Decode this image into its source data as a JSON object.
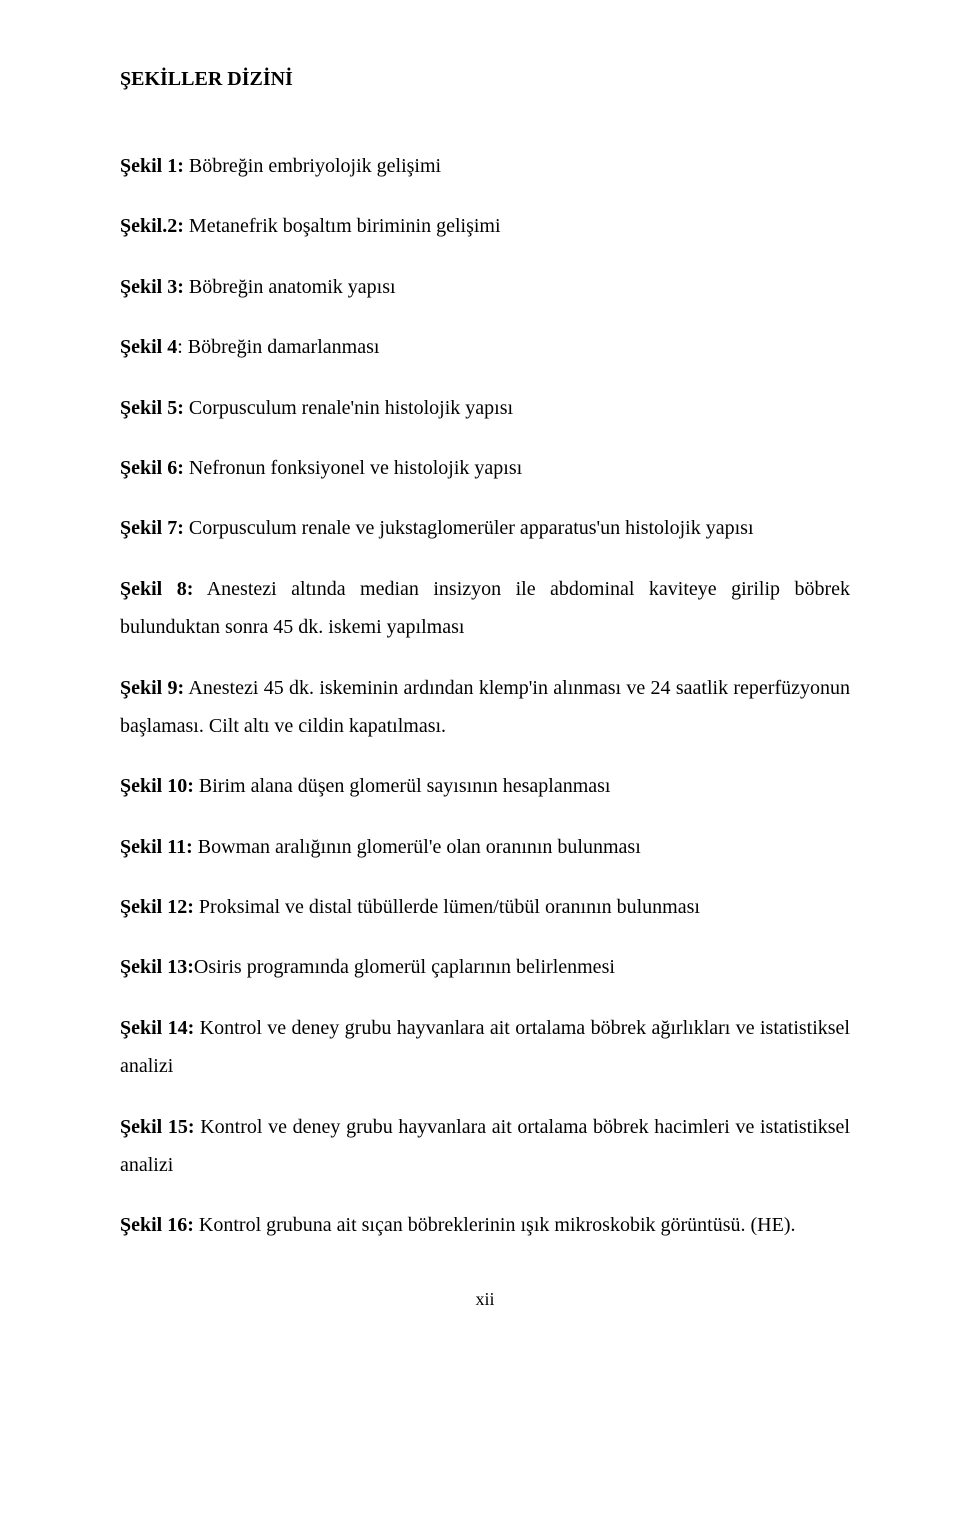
{
  "title": "ŞEKİLLER DİZİNİ",
  "entries": [
    {
      "label": "Şekil 1:",
      "text": " Böbreğin embriyolojik gelişimi"
    },
    {
      "label": "Şekil.2:",
      "text": " Metanefrik boşaltım biriminin gelişimi"
    },
    {
      "label": "Şekil 3:",
      "text": " Böbreğin anatomik yapısı"
    },
    {
      "label": "Şekil 4",
      "text": ": Böbreğin damarlanması"
    },
    {
      "label": "Şekil 5:",
      "text": " Corpusculum renale'nin histolojik yapısı"
    },
    {
      "label": "Şekil 6:",
      "text": " Nefronun fonksiyonel ve histolojik yapısı"
    },
    {
      "label": "Şekil 7:",
      "text": " Corpusculum renale ve jukstaglomerüler apparatus'un histolojik yapısı"
    },
    {
      "label": "Şekil 8:",
      "text": " Anestezi altında median insizyon ile abdominal kaviteye girilip böbrek bulunduktan sonra 45 dk. iskemi yapılması"
    },
    {
      "label": "Şekil 9:",
      "text": " Anestezi 45 dk. iskeminin ardından klemp'in alınması ve 24 saatlik reperfüzyonun başlaması. Cilt altı ve cildin kapatılması."
    },
    {
      "label": "Şekil 10:",
      "text": " Birim alana düşen glomerül sayısının hesaplanması"
    },
    {
      "label": "Şekil 11:",
      "text": " Bowman aralığının glomerül'e olan oranının bulunması"
    },
    {
      "label": "Şekil 12:",
      "text": " Proksimal ve distal tübüllerde lümen/tübül oranının bulunması"
    },
    {
      "label": "Şekil 13:",
      "text": "Osiris programında glomerül çaplarının belirlenmesi"
    },
    {
      "label": "Şekil 14:",
      "text": " Kontrol ve deney grubu hayvanlara ait ortalama böbrek ağırlıkları ve istatistiksel analizi"
    },
    {
      "label": "Şekil 15:",
      "text": " Kontrol ve deney grubu hayvanlara ait ortalama böbrek hacimleri ve istatistiksel analizi"
    },
    {
      "label": "Şekil 16:",
      "text": " Kontrol grubuna ait sıçan böbreklerinin ışık mikroskobik görüntüsü. (HE)."
    }
  ],
  "pageNumber": "xii"
}
